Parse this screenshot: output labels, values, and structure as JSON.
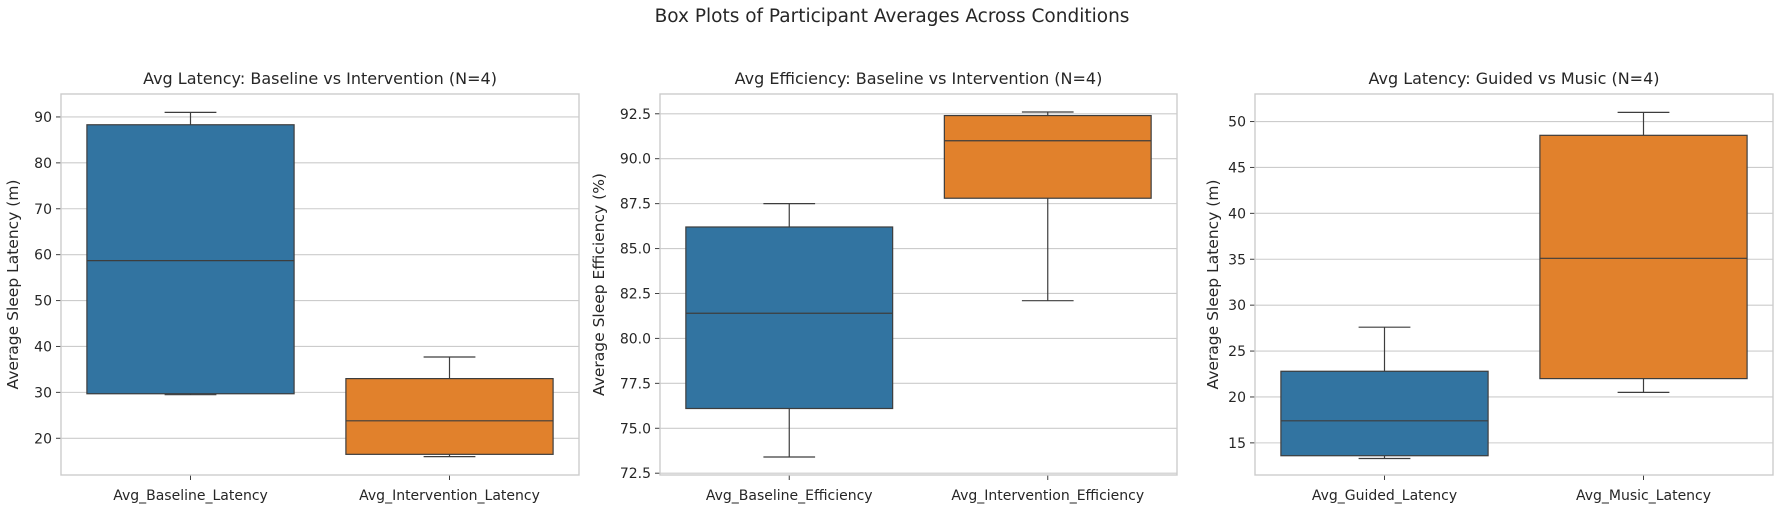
{
  "suptitle": "Box Plots of Participant Averages Across Conditions",
  "colors": {
    "series1": "#3274a1",
    "series2": "#e1812c",
    "grid": "#cccccc",
    "frame": "#cccccc",
    "line": "#3d3d3d"
  },
  "chart_data": [
    {
      "type": "box",
      "title": "Avg Latency: Baseline vs Intervention (N=4)",
      "xlabel": "",
      "ylabel": "Average Sleep Latency (m)",
      "ylim": [
        12,
        95
      ],
      "yticks": [
        20,
        30,
        40,
        50,
        60,
        70,
        80,
        90
      ],
      "ytick_labels": [
        "20",
        "30",
        "40",
        "50",
        "60",
        "70",
        "80",
        "90"
      ],
      "categories": [
        "Avg_Baseline_Latency",
        "Avg_Intervention_Latency"
      ],
      "boxes": [
        {
          "min": 29.5,
          "q1": 29.7,
          "median": 58.7,
          "q3": 88.3,
          "max": 91.0
        },
        {
          "min": 16.0,
          "q1": 16.5,
          "median": 23.8,
          "q3": 33.0,
          "max": 37.7
        }
      ]
    },
    {
      "type": "box",
      "title": "Avg Efficiency: Baseline vs Intervention (N=4)",
      "xlabel": "",
      "ylabel": "Average Sleep Efficiency (%)",
      "ylim": [
        72.4,
        93.6
      ],
      "yticks": [
        72.5,
        75.0,
        77.5,
        80.0,
        82.5,
        85.0,
        87.5,
        90.0,
        92.5
      ],
      "ytick_labels": [
        "72.5",
        "75.0",
        "77.5",
        "80.0",
        "82.5",
        "85.0",
        "87.5",
        "90.0",
        "92.5"
      ],
      "categories": [
        "Avg_Baseline_Efficiency",
        "Avg_Intervention_Efficiency"
      ],
      "boxes": [
        {
          "min": 73.4,
          "q1": 76.1,
          "median": 81.4,
          "q3": 86.2,
          "max": 87.5
        },
        {
          "min": 82.1,
          "q1": 87.8,
          "median": 91.0,
          "q3": 92.4,
          "max": 92.6
        }
      ]
    },
    {
      "type": "box",
      "title": "Avg Latency: Guided vs Music (N=4)",
      "xlabel": "",
      "ylabel": "Average Sleep Latency (m)",
      "ylim": [
        11.5,
        53
      ],
      "yticks": [
        15,
        20,
        25,
        30,
        35,
        40,
        45,
        50
      ],
      "ytick_labels": [
        "15",
        "20",
        "25",
        "30",
        "35",
        "40",
        "45",
        "50"
      ],
      "categories": [
        "Avg_Guided_Latency",
        "Avg_Music_Latency"
      ],
      "boxes": [
        {
          "min": 13.3,
          "q1": 13.6,
          "median": 17.4,
          "q3": 22.8,
          "max": 27.6
        },
        {
          "min": 20.5,
          "q1": 22.0,
          "median": 35.1,
          "q3": 48.5,
          "max": 51.0
        }
      ]
    }
  ]
}
